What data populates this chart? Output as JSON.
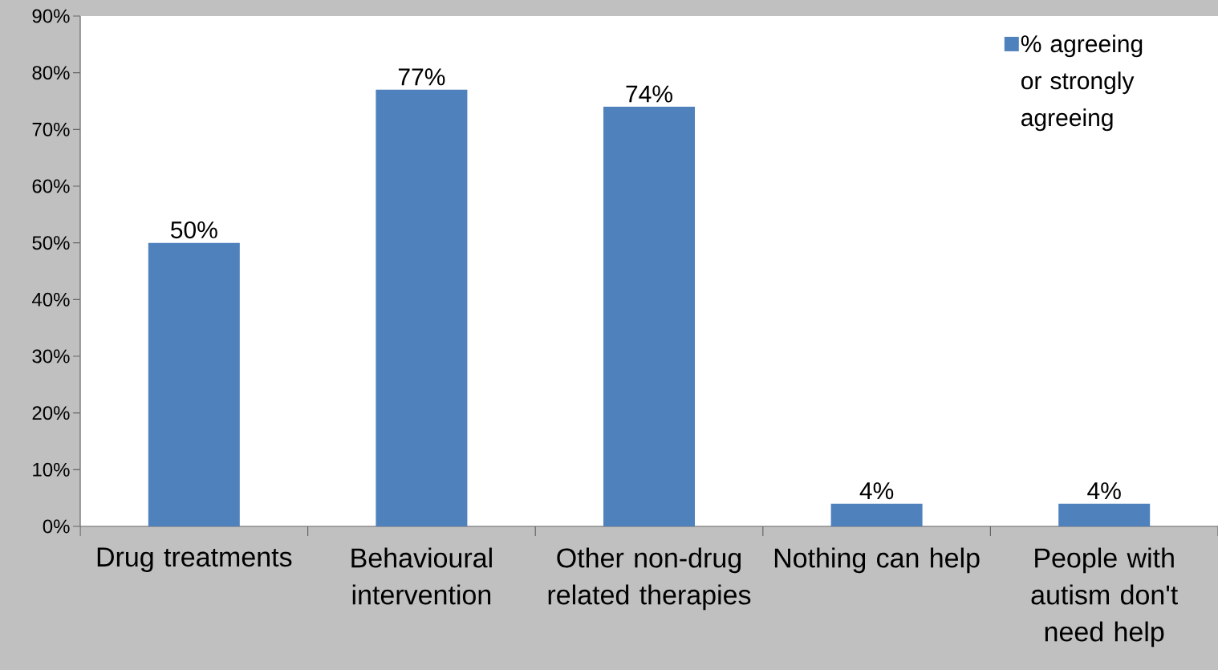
{
  "chart_data": {
    "type": "bar",
    "categories": [
      "Drug treatments",
      "Behavioural intervention",
      "Other non-drug related therapies",
      "Nothing can help",
      "People with autism don't need help"
    ],
    "series": [
      {
        "name": "% agreeing or strongly agreeing",
        "color": "#4f81bd",
        "values": [
          50,
          77,
          74,
          4,
          4
        ]
      }
    ],
    "value_labels": [
      "50%",
      "77%",
      "74%",
      "4%",
      "4%"
    ],
    "ylim": [
      0,
      90
    ],
    "yticks": [
      {
        "value": 0,
        "label": "0%"
      },
      {
        "value": 10,
        "label": "10%"
      },
      {
        "value": 20,
        "label": "20%"
      },
      {
        "value": 30,
        "label": "30%"
      },
      {
        "value": 40,
        "label": "40%"
      },
      {
        "value": 50,
        "label": "50%"
      },
      {
        "value": 60,
        "label": "60%"
      },
      {
        "value": 70,
        "label": "70%"
      },
      {
        "value": 80,
        "label": "80%"
      },
      {
        "value": 90,
        "label": "90%"
      }
    ],
    "grid": false,
    "legend": "top right"
  }
}
